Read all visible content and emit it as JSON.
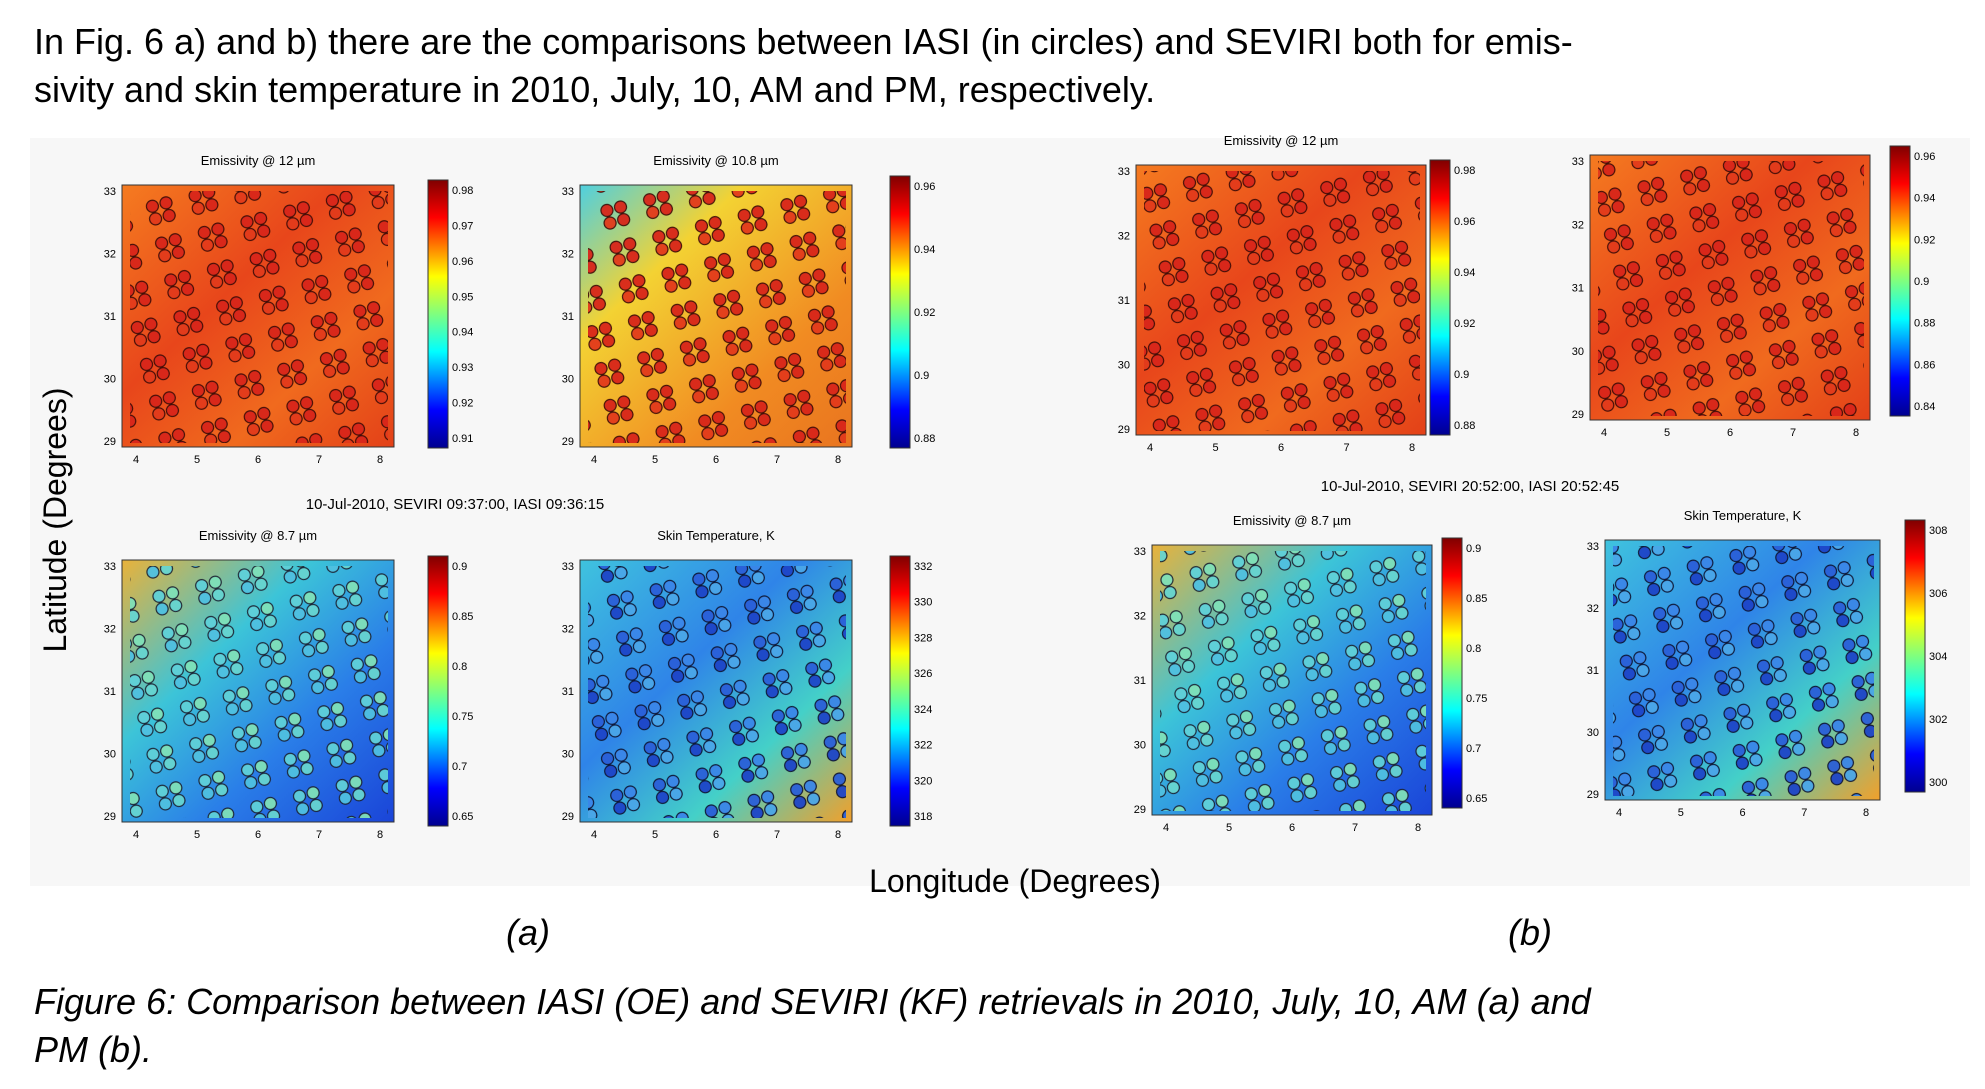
{
  "paragraph": {
    "line1": "In Fig. 6 a) and b) there are the comparisons between IASI (in circles) and SEVIRI both for emis-",
    "line2": "sivity and skin temperature in 2010, July, 10, AM and PM, respectively."
  },
  "figure": {
    "ylabel": "Latitude (Degrees)",
    "xlabel": "Longitude (Degrees)",
    "label_a": "(a)",
    "label_b": "(b)",
    "timestamp_a": "10-Jul-2010, SEVIRI 09:37:00, IASI 09:36:15",
    "timestamp_b": "10-Jul-2010, SEVIRI 20:52:00, IASI 20:52:45",
    "x_ticks": [
      "4",
      "5",
      "6",
      "7",
      "8"
    ],
    "y_ticks": [
      "29",
      "30",
      "31",
      "32",
      "33"
    ],
    "panels": [
      {
        "id": "a1",
        "title": "Emissivity @ 12 µm",
        "cbar": [
          "0.98",
          "0.97",
          "0.96",
          "0.95",
          "0.94",
          "0.93",
          "0.92",
          "0.91"
        ],
        "palette": "warm"
      },
      {
        "id": "a2",
        "title": "Emissivity @ 10.8 µm",
        "cbar": [
          "0.96",
          "0.94",
          "0.92",
          "0.9",
          "0.88"
        ],
        "palette": "warm2"
      },
      {
        "id": "a3",
        "title": "Emissivity @ 8.7 µm",
        "cbar": [
          "0.9",
          "0.85",
          "0.8",
          "0.75",
          "0.7",
          "0.65"
        ],
        "palette": "cool"
      },
      {
        "id": "a4",
        "title": "Skin Temperature, K",
        "cbar": [
          "332",
          "330",
          "328",
          "326",
          "324",
          "322",
          "320",
          "318"
        ],
        "palette": "cool2"
      },
      {
        "id": "b1",
        "title": "Emissivity @ 12 µm",
        "cbar": [
          "0.98",
          "0.96",
          "0.94",
          "0.92",
          "0.9",
          "0.88"
        ],
        "palette": "warm"
      },
      {
        "id": "b2",
        "title": "",
        "cbar": [
          "0.96",
          "0.94",
          "0.92",
          "0.9",
          "0.88",
          "0.86",
          "0.84"
        ],
        "palette": "warm"
      },
      {
        "id": "b3",
        "title": "Emissivity @ 8.7 µm",
        "cbar": [
          "0.9",
          "0.85",
          "0.8",
          "0.75",
          "0.7",
          "0.65"
        ],
        "palette": "cool"
      },
      {
        "id": "b4",
        "title": "Skin Temperature, K",
        "cbar": [
          "308",
          "306",
          "304",
          "302",
          "300"
        ],
        "palette": "cool2"
      }
    ]
  },
  "caption": {
    "line1": "Figure 6: Comparison between IASI (OE) and SEVIRI (KF) retrievals in 2010, July, 10, AM (a) and",
    "line2": "PM (b)."
  }
}
